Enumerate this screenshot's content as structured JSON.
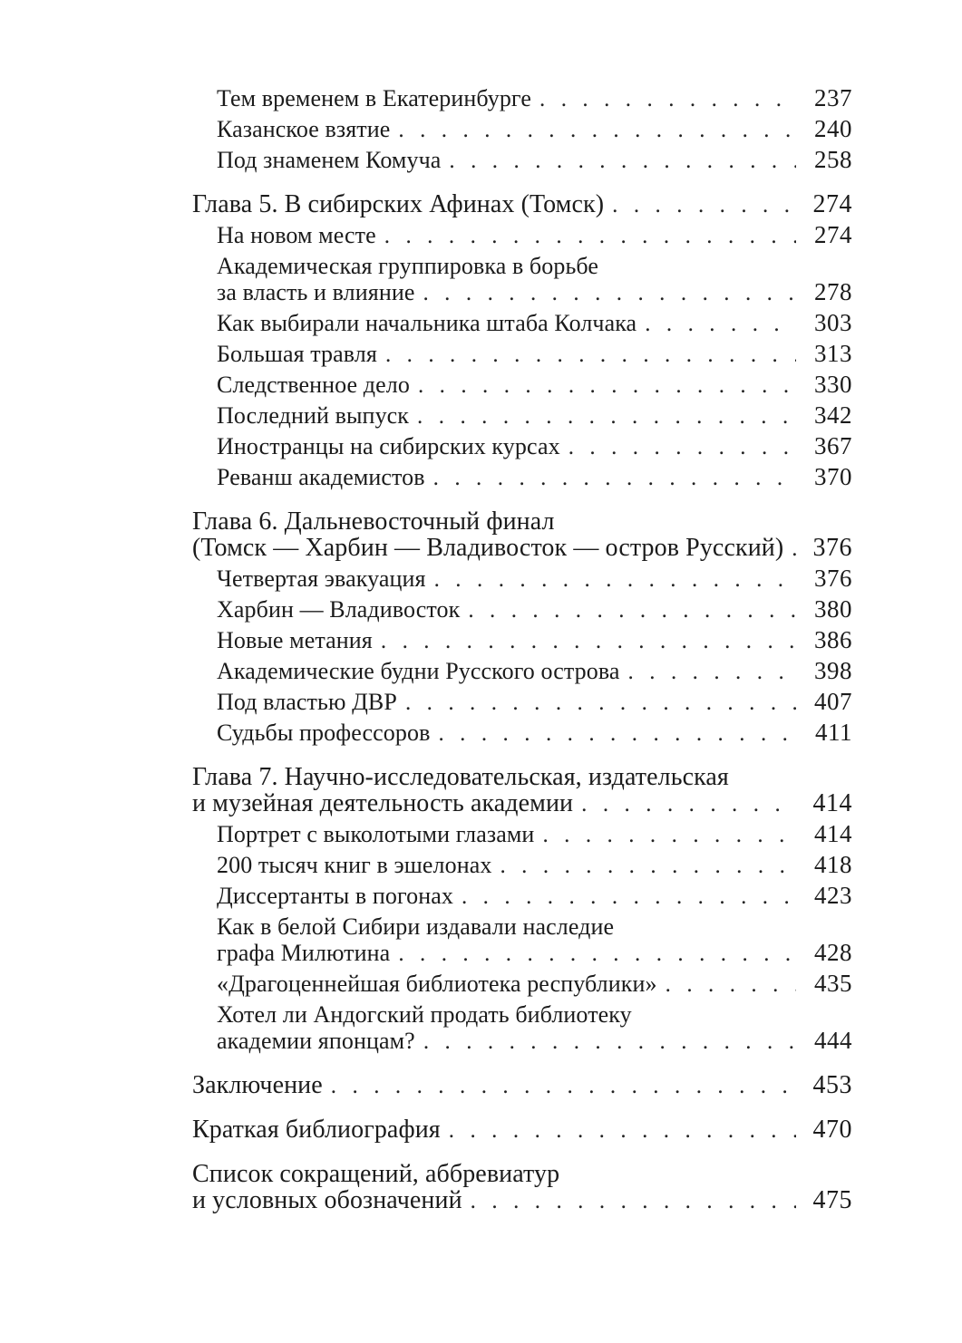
{
  "page": {
    "background_color": "#ffffff",
    "text_color": "#1b1b1b"
  },
  "toc": {
    "entries": [
      {
        "level": 1,
        "group_start": false,
        "lines": [
          "Тем временем в Екатеринбурге"
        ],
        "page": "237"
      },
      {
        "level": 1,
        "group_start": false,
        "lines": [
          "Казанское взятие"
        ],
        "page": "240"
      },
      {
        "level": 1,
        "group_start": false,
        "lines": [
          "Под знаменем Комуча"
        ],
        "page": "258"
      },
      {
        "level": 0,
        "group_start": true,
        "lines": [
          "Глава 5. В сибирских Афинах (Томск)"
        ],
        "page": "274"
      },
      {
        "level": 1,
        "group_start": false,
        "lines": [
          "На новом месте"
        ],
        "page": "274"
      },
      {
        "level": 1,
        "group_start": false,
        "lines": [
          "Академическая группировка в борьбе",
          "за власть и влияние"
        ],
        "page": "278"
      },
      {
        "level": 1,
        "group_start": false,
        "lines": [
          "Как выбирали начальника штаба Колчака"
        ],
        "page": "303"
      },
      {
        "level": 1,
        "group_start": false,
        "lines": [
          "Большая травля"
        ],
        "page": "313"
      },
      {
        "level": 1,
        "group_start": false,
        "lines": [
          "Следственное дело"
        ],
        "page": "330"
      },
      {
        "level": 1,
        "group_start": false,
        "lines": [
          "Последний выпуск"
        ],
        "page": "342"
      },
      {
        "level": 1,
        "group_start": false,
        "lines": [
          "Иностранцы на сибирских курсах"
        ],
        "page": "367"
      },
      {
        "level": 1,
        "group_start": false,
        "lines": [
          "Реванш академистов"
        ],
        "page": "370"
      },
      {
        "level": 0,
        "group_start": true,
        "lines": [
          "Глава 6. Дальневосточный финал",
          "(Томск — Харбин — Владивосток — остров Русский)"
        ],
        "page": "376"
      },
      {
        "level": 1,
        "group_start": false,
        "lines": [
          "Четвертая эвакуация"
        ],
        "page": "376"
      },
      {
        "level": 1,
        "group_start": false,
        "lines": [
          "Харбин — Владивосток"
        ],
        "page": "380"
      },
      {
        "level": 1,
        "group_start": false,
        "lines": [
          "Новые метания"
        ],
        "page": "386"
      },
      {
        "level": 1,
        "group_start": false,
        "lines": [
          "Академические будни Русского острова"
        ],
        "page": "398"
      },
      {
        "level": 1,
        "group_start": false,
        "lines": [
          "Под властью ДВР"
        ],
        "page": "407"
      },
      {
        "level": 1,
        "group_start": false,
        "lines": [
          "Судьбы профессоров"
        ],
        "page": "411"
      },
      {
        "level": 0,
        "group_start": true,
        "lines": [
          "Глава 7. Научно-исследовательская, издательская",
          "и музейная деятельность академии"
        ],
        "page": "414"
      },
      {
        "level": 1,
        "group_start": false,
        "lines": [
          "Портрет с выколотыми глазами"
        ],
        "page": "414"
      },
      {
        "level": 1,
        "group_start": false,
        "lines": [
          "200 тысяч книг в эшелонах"
        ],
        "page": "418"
      },
      {
        "level": 1,
        "group_start": false,
        "lines": [
          "Диссертанты в погонах"
        ],
        "page": "423"
      },
      {
        "level": 1,
        "group_start": false,
        "lines": [
          "Как в белой Сибири издавали наследие",
          "графа Милютина"
        ],
        "page": "428"
      },
      {
        "level": 1,
        "group_start": false,
        "lines": [
          "«Драгоценнейшая библиотека республики»"
        ],
        "page": "435"
      },
      {
        "level": 1,
        "group_start": false,
        "lines": [
          "Хотел ли Андогский продать библиотеку",
          "академии японцам?"
        ],
        "page": "444"
      },
      {
        "level": 0,
        "group_start": true,
        "lines": [
          "Заключение"
        ],
        "page": "453"
      },
      {
        "level": 0,
        "group_start": true,
        "lines": [
          "Краткая библиография"
        ],
        "page": "470"
      },
      {
        "level": 0,
        "group_start": true,
        "lines": [
          "Список сокращений, аббревиатур",
          "и условных обозначений"
        ],
        "page": "475"
      }
    ]
  }
}
